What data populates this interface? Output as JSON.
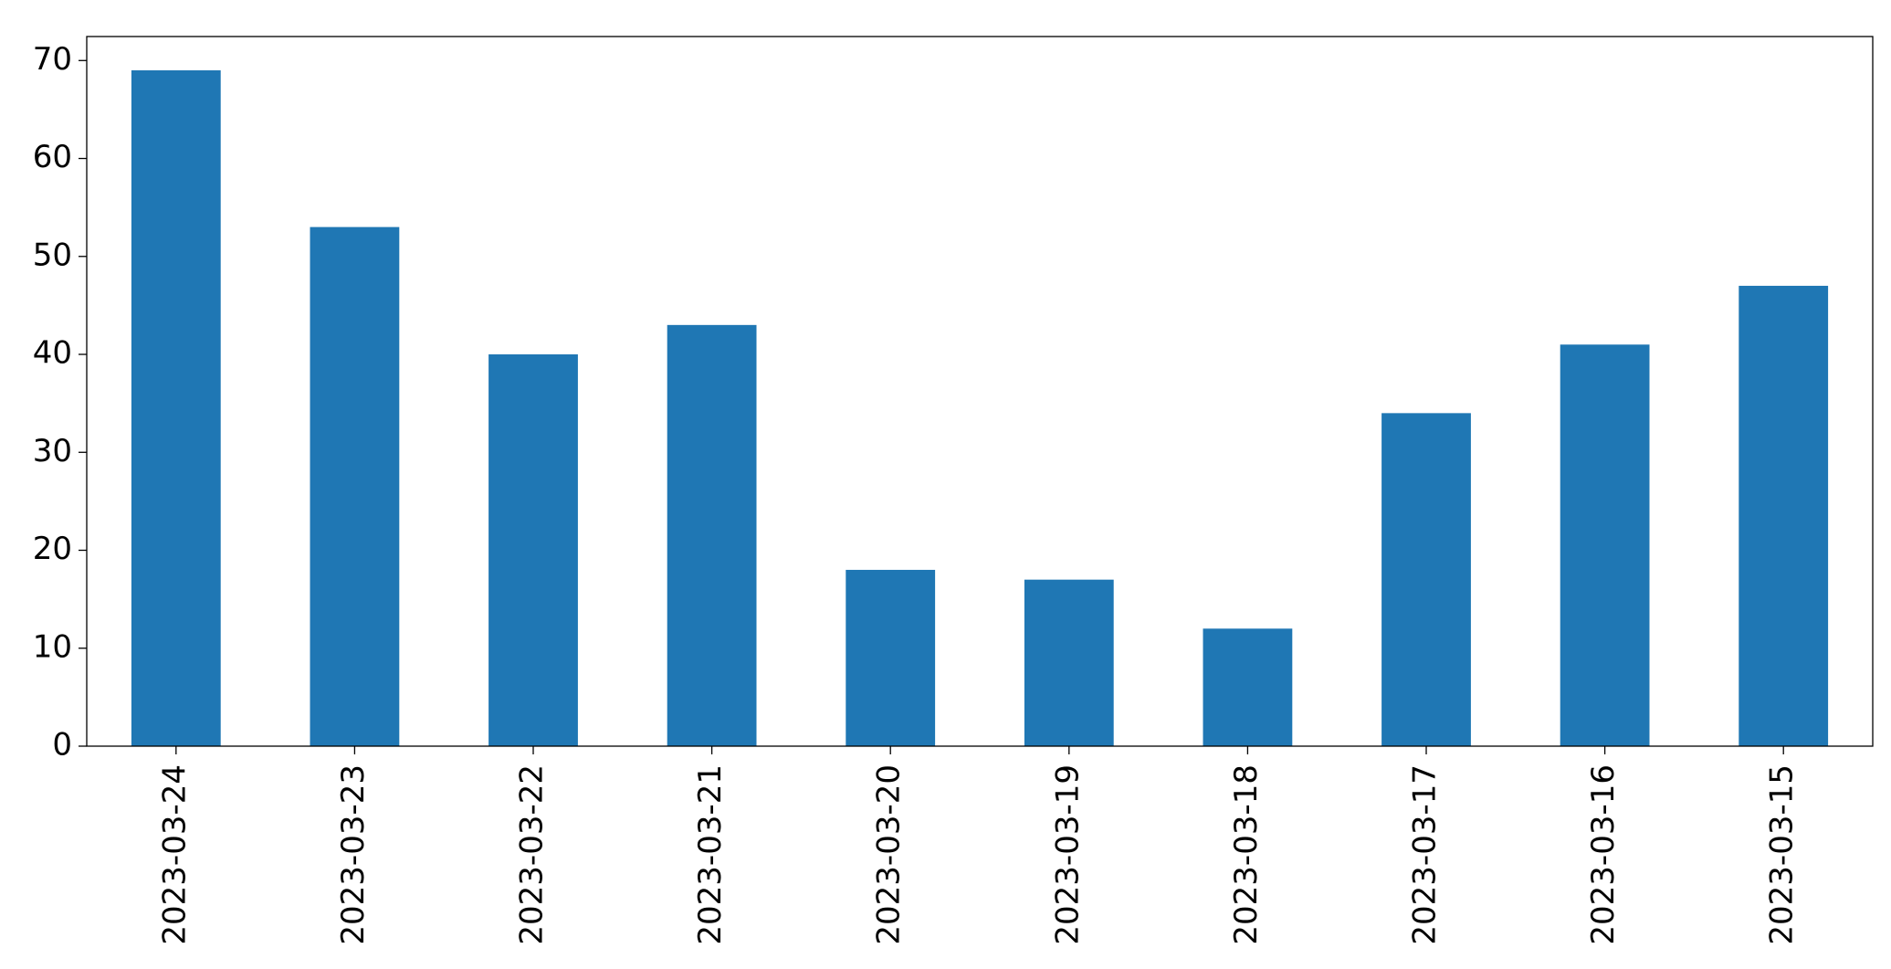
{
  "chart_data": {
    "type": "bar",
    "categories": [
      "2023-03-24",
      "2023-03-23",
      "2023-03-22",
      "2023-03-21",
      "2023-03-20",
      "2023-03-19",
      "2023-03-18",
      "2023-03-17",
      "2023-03-16",
      "2023-03-15"
    ],
    "values": [
      69,
      53,
      40,
      43,
      18,
      17,
      12,
      34,
      41,
      47
    ],
    "color": "#1f77b4",
    "ylim": [
      0,
      72.45
    ],
    "yticks": [
      0,
      10,
      20,
      30,
      40,
      50,
      60,
      70
    ],
    "grid": false
  }
}
